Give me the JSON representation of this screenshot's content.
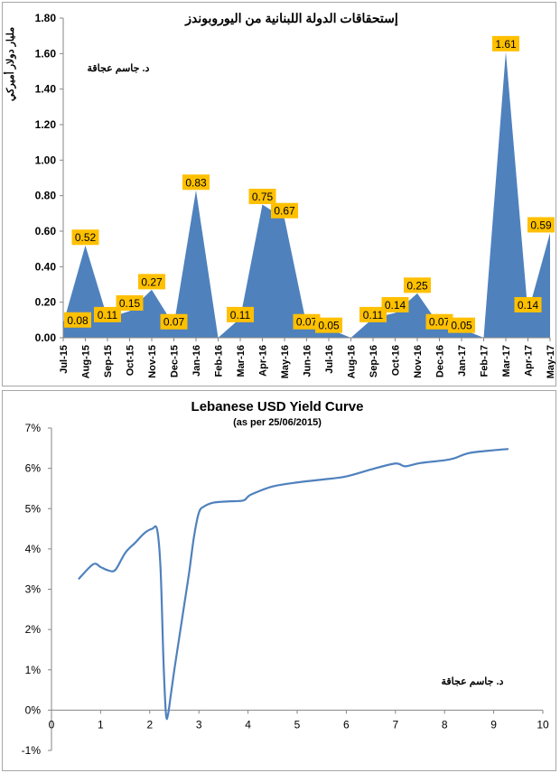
{
  "chart_data": [
    {
      "type": "area",
      "title": "إستحقاقات الدولة اللبنانية من اليوروبوندز",
      "ylabel": "مليار دولار أميركي",
      "author": "د. جاسم عجاقة",
      "ylim": [
        0,
        1.8
      ],
      "yticks": [
        "0.00",
        "0.20",
        "0.40",
        "0.60",
        "0.80",
        "1.00",
        "1.20",
        "1.40",
        "1.60",
        "1.80"
      ],
      "categories": [
        "Jul-15",
        "Aug-15",
        "Sep-15",
        "Oct-15",
        "Nov-15",
        "Dec-15",
        "Jan-16",
        "Feb-16",
        "Mar-16",
        "Apr-16",
        "May-16",
        "Jun-16",
        "Jul-16",
        "Aug-16",
        "Sep-16",
        "Oct-16",
        "Nov-16",
        "Dec-16",
        "Jan-17",
        "Feb-17",
        "Mar-17",
        "Apr-17",
        "May-17"
      ],
      "values": [
        0.08,
        0.52,
        0.11,
        0.15,
        0.27,
        0.07,
        0.83,
        null,
        0.11,
        0.75,
        0.67,
        0.07,
        0.05,
        null,
        0.11,
        0.14,
        0.25,
        0.07,
        0.05,
        null,
        1.61,
        0.14,
        0.59
      ],
      "series_color": "#4f81bd",
      "label_bg": "#ffc000",
      "grid": false
    },
    {
      "type": "line",
      "title": "Lebanese USD Yield Curve",
      "subtitle": "(as per 25/06/2015)",
      "author": "د. جاسم عجاقة",
      "xlim": [
        0,
        10
      ],
      "ylim": [
        -1,
        7
      ],
      "xticks": [
        "0",
        "1",
        "2",
        "3",
        "4",
        "5",
        "6",
        "7",
        "8",
        "9",
        "10"
      ],
      "yticks": [
        "-1%",
        "0%",
        "1%",
        "2%",
        "3%",
        "4%",
        "5%",
        "6%",
        "7%"
      ],
      "x": [
        0.55,
        0.85,
        1.0,
        1.15,
        1.3,
        1.5,
        1.7,
        1.9,
        2.05,
        2.15,
        2.22,
        2.28,
        2.33,
        2.37,
        2.42,
        2.5,
        2.6,
        2.7,
        2.8,
        2.9,
        3.0,
        3.1,
        3.3,
        3.6,
        3.9,
        4.0,
        4.1,
        4.5,
        5.0,
        5.5,
        6.0,
        6.5,
        7.0,
        7.2,
        7.5,
        8.0,
        8.2,
        8.5,
        9.0,
        9.3
      ],
      "y": [
        3.25,
        3.62,
        3.55,
        3.47,
        3.48,
        3.9,
        4.15,
        4.4,
        4.5,
        4.48,
        3.5,
        1.2,
        -0.1,
        -0.12,
        0.3,
        1.0,
        1.8,
        2.6,
        3.4,
        4.3,
        4.9,
        5.05,
        5.15,
        5.18,
        5.2,
        5.3,
        5.37,
        5.55,
        5.65,
        5.72,
        5.8,
        5.97,
        6.12,
        6.05,
        6.13,
        6.2,
        6.25,
        6.38,
        6.45,
        6.48
      ],
      "series_color": "#4f81bd",
      "grid": false
    }
  ]
}
